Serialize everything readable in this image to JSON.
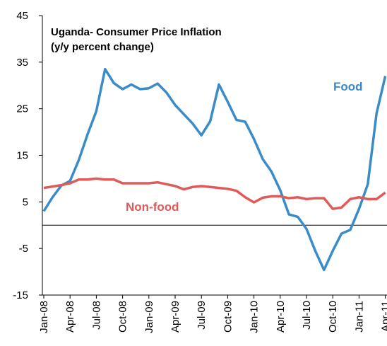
{
  "chart_data": {
    "type": "line",
    "title": "Uganda- Consumer Price Inflation",
    "subtitle": "(y/y percent change)",
    "categories": [
      "Jan-08",
      null,
      null,
      "Apr-08",
      null,
      null,
      "Jul-08",
      null,
      null,
      "Oct-08",
      null,
      null,
      "Jan-09",
      null,
      null,
      "Apr-09",
      null,
      null,
      "Jul-09",
      null,
      null,
      "Oct-09",
      null,
      null,
      "Jan-10",
      null,
      null,
      "Apr-10",
      null,
      null,
      "Jul-10",
      null,
      null,
      "Oct-10",
      null,
      null,
      "Jan-11",
      null,
      null,
      "Apr-11"
    ],
    "series": [
      {
        "name": "Food",
        "color": "#3a8cc8",
        "values": [
          3,
          6,
          8.5,
          9.5,
          14,
          19.5,
          24.5,
          33.5,
          30.5,
          29.2,
          30.2,
          29.2,
          29.4,
          30.4,
          28.5,
          25.8,
          23.8,
          21.8,
          19.3,
          22.3,
          30.2,
          26.5,
          22.6,
          22.2,
          18.5,
          14.2,
          11.5,
          7.5,
          2.3,
          1.8,
          -0.8,
          -5.5,
          -9.6,
          -5.5,
          -1.8,
          -1,
          3.5,
          8.8,
          24,
          32
        ]
      },
      {
        "name": "Non-food",
        "color": "#e05a5a",
        "values": [
          8,
          8.3,
          8.6,
          9,
          9.8,
          9.8,
          10,
          9.8,
          9.8,
          9,
          9,
          9,
          9,
          9.2,
          8.8,
          8.4,
          7.7,
          8.2,
          8.4,
          8.2,
          8,
          7.8,
          7.4,
          6,
          4.9,
          5.9,
          6.2,
          6.2,
          5.8,
          6,
          5.6,
          5.8,
          5.8,
          3.5,
          3.8,
          5.6,
          6,
          5.6,
          5.6,
          7
        ]
      }
    ],
    "ylim": [
      -15,
      45
    ],
    "yticks": [
      -15,
      -5,
      5,
      15,
      25,
      35,
      45
    ]
  }
}
